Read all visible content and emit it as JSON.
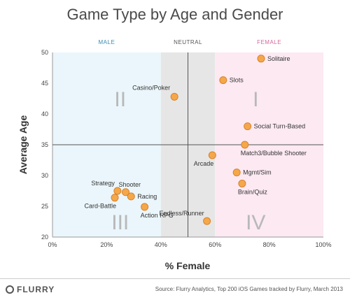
{
  "colors": {
    "male_zone": "#eaf6fb",
    "neutral_zone": "#e6e6e6",
    "female_zone": "#fce9f2",
    "male_label": "#3a8bb0",
    "neutral_label": "#555555",
    "female_label": "#d46a9e",
    "point_fill": "#f5a84a",
    "point_stroke": "#d9822b",
    "grid_line": "#555555"
  },
  "footer": {
    "logo_text": "FLURRY",
    "source": "Source: Flurry Analytics, Top 200 iOS Games tracked by Flurry, March 2013"
  },
  "chart_data": {
    "type": "scatter",
    "title": "Game Type by Age and Gender",
    "xlabel": "% Female",
    "ylabel": "Average Age",
    "xlim": [
      0,
      100
    ],
    "ylim": [
      20,
      50
    ],
    "x_ticks": [
      "0%",
      "20%",
      "40%",
      "60%",
      "80%",
      "100%"
    ],
    "y_ticks": [
      "20",
      "25",
      "30",
      "35",
      "40",
      "45",
      "50"
    ],
    "zones": [
      {
        "label": "MALE",
        "from": 0,
        "to": 40
      },
      {
        "label": "NEUTRAL",
        "from": 40,
        "to": 60
      },
      {
        "label": "FEMALE",
        "from": 60,
        "to": 100
      }
    ],
    "divider_x": 50,
    "divider_y": 35,
    "quadrants": [
      {
        "label": "I",
        "x": 75,
        "y": 42.5
      },
      {
        "label": "II",
        "x": 25,
        "y": 42.5
      },
      {
        "label": "III",
        "x": 25,
        "y": 22.5
      },
      {
        "label": "IV",
        "x": 75,
        "y": 22.5
      }
    ],
    "points": [
      {
        "name": "Solitaire",
        "x": 77,
        "y": 49,
        "anchor": "right"
      },
      {
        "name": "Slots",
        "x": 63,
        "y": 45.5,
        "anchor": "right"
      },
      {
        "name": "Casino/Poker",
        "x": 45,
        "y": 42.8,
        "anchor": "top-left"
      },
      {
        "name": "Social Turn-Based",
        "x": 72,
        "y": 38,
        "anchor": "right"
      },
      {
        "name": "Match3/Bubble Shooter",
        "x": 71,
        "y": 35,
        "anchor": "below-right"
      },
      {
        "name": "Arcade",
        "x": 59,
        "y": 33.3,
        "anchor": "below-left"
      },
      {
        "name": "Mgmt/Sim",
        "x": 68,
        "y": 30.5,
        "anchor": "right"
      },
      {
        "name": "Brain/Quiz",
        "x": 70,
        "y": 28.7,
        "anchor": "below-right"
      },
      {
        "name": "Endless/Runner",
        "x": 57,
        "y": 22.6,
        "anchor": "above-left"
      },
      {
        "name": "Strategy",
        "x": 24,
        "y": 27.5,
        "anchor": "above-left"
      },
      {
        "name": "Shooter",
        "x": 27,
        "y": 27.3,
        "anchor": "above-right"
      },
      {
        "name": "Racing",
        "x": 29,
        "y": 26.6,
        "anchor": "right"
      },
      {
        "name": "Card-Battle",
        "x": 23,
        "y": 26.4,
        "anchor": "below-left"
      },
      {
        "name": "Action RPG",
        "x": 34,
        "y": 24.9,
        "anchor": "below-right"
      }
    ]
  }
}
